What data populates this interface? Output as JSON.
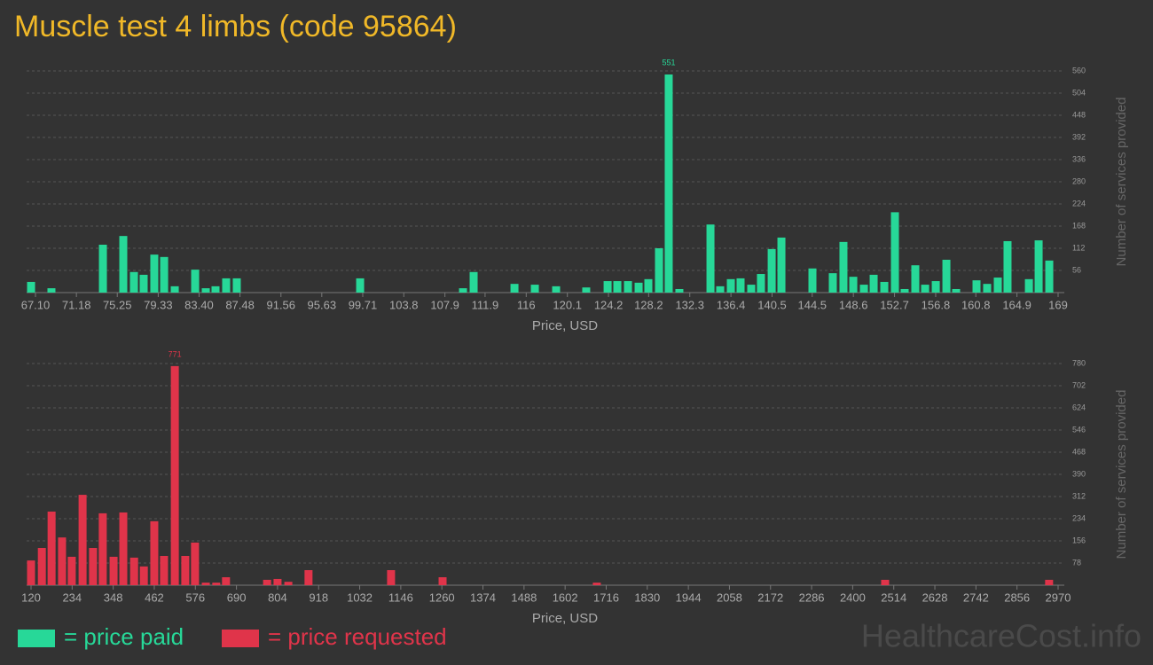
{
  "title": "Muscle test 4 limbs (code 95864)",
  "watermark": "HealthcareCost.info",
  "chart_data": [
    {
      "type": "bar",
      "label_max": true,
      "grid": true,
      "x_label": "Price, USD",
      "y_label": "Number of services provided",
      "x": [
        66.66,
        68.69,
        73.82,
        75.85,
        76.91,
        77.88,
        78.94,
        79.92,
        80.98,
        83.01,
        84.07,
        85.04,
        86.1,
        87.16,
        99.45,
        109.7,
        110.76,
        114.83,
        116.86,
        118.98,
        121.98,
        124.11,
        125.08,
        126.14,
        127.2,
        128.17,
        129.23,
        130.2,
        131.26,
        134.36,
        135.33,
        136.39,
        137.36,
        138.42,
        139.39,
        140.46,
        141.43,
        144.52,
        146.55,
        147.61,
        148.59,
        149.65,
        150.62,
        151.68,
        152.74,
        153.71,
        154.77,
        155.75,
        156.81,
        157.87,
        158.84,
        160.87,
        161.93,
        162.99,
        163.96,
        166.09,
        167.06,
        168.12
      ],
      "series": [
        {
          "name": "= price paid",
          "color": "#27d898",
          "values": [
            27,
            11,
            121,
            143,
            52,
            45,
            96,
            90,
            16,
            58,
            11,
            16,
            36,
            36,
            36,
            11,
            52,
            22,
            20,
            16,
            13,
            29,
            29,
            29,
            25,
            34,
            112,
            551,
            9,
            172,
            16,
            34,
            36,
            20,
            47,
            110,
            139,
            61,
            49,
            128,
            40,
            20,
            45,
            27,
            203,
            9,
            69,
            20,
            29,
            83,
            9,
            31,
            22,
            38,
            130,
            34,
            132,
            81
          ]
        }
      ],
      "xlim": [
        67.1,
        169
      ],
      "xticks": [
        {
          "value": 67.1,
          "label": "67.10"
        },
        71.18,
        75.25,
        79.33,
        {
          "value": 83.4,
          "label": "83.40"
        },
        87.48,
        91.56,
        95.63,
        99.71,
        103.8,
        107.9,
        111.9,
        116,
        120.1,
        124.2,
        128.2,
        132.3,
        136.4,
        140.5,
        144.5,
        148.6,
        152.7,
        156.8,
        160.8,
        164.9,
        169
      ],
      "ylim": [
        0,
        560
      ],
      "yticks": [
        56,
        112,
        168,
        224,
        280,
        336,
        392,
        448,
        504,
        560
      ]
    },
    {
      "type": "bar",
      "label_max": true,
      "grid": true,
      "x_label": "Price, USD",
      "y_label": "Number of services provided",
      "x": [
        120,
        150,
        177,
        206,
        233,
        263,
        292,
        319,
        349,
        376,
        406,
        433,
        462,
        489,
        519,
        548,
        575,
        605,
        634,
        661,
        775,
        804,
        834,
        890,
        1119,
        1262,
        1690,
        2490,
        2945
      ],
      "series": [
        {
          "name": "= price requested",
          "color": "#e0344a",
          "values": [
            87,
            131,
            259,
            168,
            100,
            318,
            131,
            253,
            100,
            256,
            97,
            66,
            225,
            103,
            771,
            103,
            150,
            9,
            9,
            28,
            19,
            22,
            12,
            53,
            53,
            28,
            9,
            19,
            19
          ]
        }
      ],
      "xlim": [
        120,
        2970
      ],
      "xticks": [
        120,
        234,
        348,
        462,
        576,
        690,
        804,
        918,
        1032,
        1146,
        1260,
        1374,
        1488,
        1602,
        1716,
        1830,
        1944,
        2058,
        2172,
        2286,
        2400,
        2514,
        2628,
        2742,
        2856,
        2970
      ],
      "ylim": [
        0,
        780
      ],
      "yticks": [
        78,
        156,
        234,
        312,
        390,
        468,
        546,
        624,
        702,
        780
      ]
    }
  ]
}
